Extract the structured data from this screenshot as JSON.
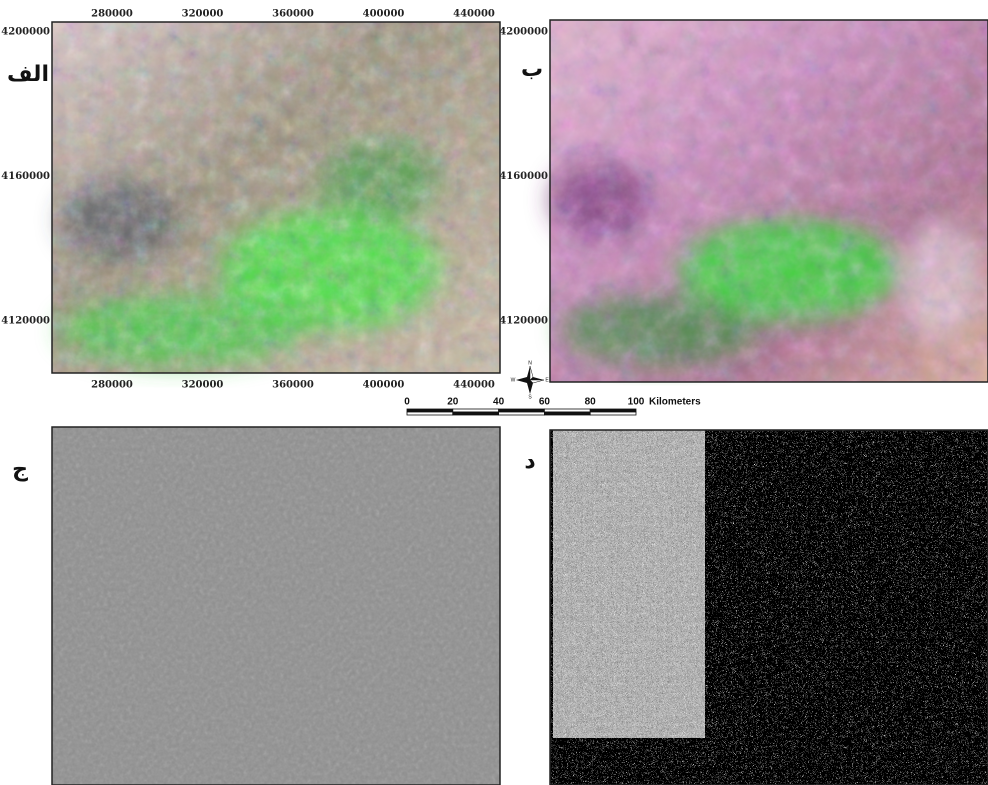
{
  "panels": [
    {
      "label": "الف",
      "x_ticks": [
        280000,
        320000,
        360000,
        400000,
        440000
      ],
      "y_ticks": [
        4200000,
        4160000,
        4120000
      ]
    },
    {
      "label": "ب",
      "y_ticks": [
        4200000,
        4160000,
        4120000
      ]
    },
    {
      "label": "ج"
    },
    {
      "label": "د"
    }
  ],
  "scale_bar": {
    "ticks": [
      0,
      20,
      40,
      60,
      80,
      100
    ],
    "unit": "Kilometers"
  },
  "north_arrow": {
    "n": "N",
    "s": "S",
    "e": "E",
    "w": "W"
  }
}
